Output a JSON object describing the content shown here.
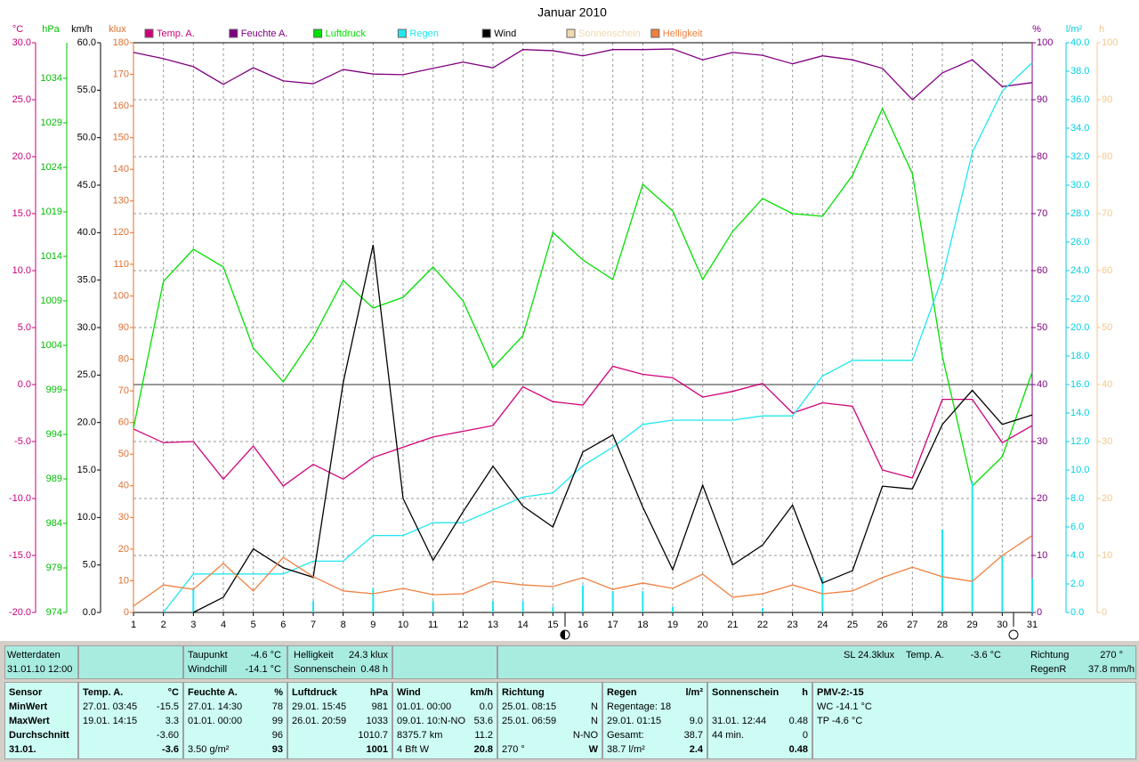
{
  "chart_data": {
    "type": "line",
    "title": "Januar 2010",
    "x": [
      1,
      2,
      3,
      4,
      5,
      6,
      7,
      8,
      9,
      10,
      11,
      12,
      13,
      14,
      15,
      16,
      17,
      18,
      19,
      20,
      21,
      22,
      23,
      24,
      25,
      26,
      27,
      28,
      29,
      30,
      31
    ],
    "xlim": [
      1,
      31
    ],
    "xticks": [
      1,
      2,
      3,
      4,
      5,
      6,
      7,
      8,
      9,
      10,
      11,
      12,
      13,
      14,
      15,
      16,
      17,
      18,
      19,
      20,
      21,
      22,
      23,
      24,
      25,
      26,
      27,
      28,
      29,
      30,
      31
    ],
    "grid": true,
    "axes": [
      {
        "label": "°C",
        "color": "#c8007a",
        "lim": [
          -20,
          30
        ],
        "ticks": [
          {
            "value": -20,
            "label": "-20.0"
          },
          {
            "value": -15,
            "label": "-15.0"
          },
          {
            "value": -10,
            "label": "-10.0"
          },
          {
            "value": -5,
            "label": "-5.0"
          },
          {
            "value": 0,
            "label": "0.0"
          },
          {
            "value": 5,
            "label": "5.0"
          },
          {
            "value": 10,
            "label": "10.0"
          },
          {
            "value": 15,
            "label": "15.0"
          },
          {
            "value": 20,
            "label": "20.0"
          },
          {
            "value": 25,
            "label": "25.0"
          },
          {
            "value": 30,
            "label": "30.0"
          }
        ]
      },
      {
        "label": "hPa",
        "color": "#00c000",
        "lim": [
          974,
          1038
        ],
        "ticks": [
          974,
          979,
          984,
          989,
          994,
          999,
          1004,
          1009,
          1014,
          1019,
          1024,
          1029,
          1034
        ]
      },
      {
        "label": "km/h",
        "color": "#000000",
        "lim": [
          0,
          60
        ],
        "ticks": [
          {
            "value": 0,
            "label": "0.0"
          },
          {
            "value": 5,
            "label": "5.0"
          },
          {
            "value": 10,
            "label": "10.0"
          },
          {
            "value": 15,
            "label": "15.0"
          },
          {
            "value": 20,
            "label": "20.0"
          },
          {
            "value": 25,
            "label": "25.0"
          },
          {
            "value": 30,
            "label": "30.0"
          },
          {
            "value": 35,
            "label": "35.0"
          },
          {
            "value": 40,
            "label": "40.0"
          },
          {
            "value": 45,
            "label": "45.0"
          },
          {
            "value": 50,
            "label": "50.0"
          },
          {
            "value": 55,
            "label": "55.0"
          },
          {
            "value": 60,
            "label": "60.0"
          }
        ]
      },
      {
        "label": "klux",
        "color": "#e07030",
        "lim": [
          0,
          180
        ],
        "ticks": [
          0,
          10,
          20,
          30,
          40,
          50,
          60,
          70,
          80,
          90,
          100,
          110,
          120,
          130,
          140,
          150,
          160,
          170,
          180
        ]
      },
      {
        "label": "%",
        "color": "#800080",
        "lim": [
          0,
          100
        ],
        "ticks": [
          0,
          10,
          20,
          30,
          40,
          50,
          60,
          70,
          80,
          90,
          100
        ]
      },
      {
        "label": "l/m²",
        "color": "#00d0e0",
        "lim": [
          0,
          40
        ],
        "ticks": [
          {
            "value": 0,
            "label": "0.0"
          },
          {
            "value": 2,
            "label": "2.0"
          },
          {
            "value": 4,
            "label": "4.0"
          },
          {
            "value": 6,
            "label": "6.0"
          },
          {
            "value": 8,
            "label": "8.0"
          },
          {
            "value": 10,
            "label": "10.0"
          },
          {
            "value": 12,
            "label": "12.0"
          },
          {
            "value": 14,
            "label": "14.0"
          },
          {
            "value": 16,
            "label": "16.0"
          },
          {
            "value": 18,
            "label": "18.0"
          },
          {
            "value": 20,
            "label": "20.0"
          },
          {
            "value": 22,
            "label": "22.0"
          },
          {
            "value": 24,
            "label": "24.0"
          },
          {
            "value": 26,
            "label": "26.0"
          },
          {
            "value": 28,
            "label": "28.0"
          },
          {
            "value": 30,
            "label": "30.0"
          },
          {
            "value": 32,
            "label": "32.0"
          },
          {
            "value": 34,
            "label": "34.0"
          },
          {
            "value": 36,
            "label": "36.0"
          },
          {
            "value": 38,
            "label": "38.0"
          },
          {
            "value": 40,
            "label": "40.0"
          }
        ]
      },
      {
        "label": "h",
        "color": "#f0c890",
        "lim": [
          0,
          100
        ],
        "ticks": [
          0,
          10,
          20,
          30,
          40,
          50,
          60,
          70,
          80,
          90,
          100
        ]
      }
    ],
    "series": [
      {
        "name": "Temp. A.",
        "color": "#d0007a",
        "axis": 0,
        "values": [
          -3.9,
          -5.1,
          -5.0,
          -8.3,
          -5.4,
          -8.9,
          -7.0,
          -8.3,
          -6.4,
          -5.5,
          -4.6,
          -4.1,
          -3.6,
          -0.2,
          -1.5,
          -1.8,
          1.6,
          0.9,
          0.6,
          -1.1,
          -0.6,
          0.1,
          -2.5,
          -1.6,
          -1.9,
          -7.5,
          -8.2,
          -1.3,
          -1.3,
          -5.1,
          -3.6
        ]
      },
      {
        "name": "Feuchte A.",
        "color": "#800080",
        "axis": 4,
        "values": [
          98.3,
          97.2,
          95.8,
          92.7,
          95.6,
          93.3,
          92.8,
          95.3,
          94.5,
          94.4,
          95.5,
          96.6,
          95.6,
          98.8,
          98.6,
          97.7,
          98.8,
          98.8,
          98.9,
          97.0,
          98.3,
          97.8,
          96.3,
          97.7,
          97.0,
          95.5,
          90.0,
          94.7,
          97.0,
          92.3,
          93
        ]
      },
      {
        "name": "Luftdruck",
        "color": "#00e000",
        "axis": 1,
        "values": [
          994.7,
          1011.2,
          1014.8,
          1012.8,
          1003.7,
          999.9,
          1004.9,
          1011.3,
          1008.2,
          1009.4,
          1012.8,
          1009.0,
          1001.5,
          1005.1,
          1016.7,
          1013.6,
          1011.4,
          1022.1,
          1019.1,
          1011.4,
          1016.8,
          1020.5,
          1018.8,
          1018.5,
          1023.1,
          1030.6,
          1023.3,
          1002.8,
          988.2,
          991.5,
          1001
        ]
      },
      {
        "name": "Regen",
        "color": "#20e8f0",
        "axis": 5,
        "values": [
          null,
          0,
          2.7,
          2.7,
          2.7,
          2.7,
          3.6,
          3.6,
          5.4,
          5.4,
          6.3,
          6.3,
          7.2,
          8.1,
          8.4,
          10.3,
          11.6,
          13.2,
          13.5,
          13.5,
          13.5,
          13.8,
          13.8,
          16.6,
          17.7,
          17.7,
          17.7,
          23.5,
          32.3,
          36.6,
          38.6
        ],
        "daily": [
          0,
          0,
          1.7,
          0,
          0,
          0,
          0.8,
          0,
          1.7,
          0,
          0.8,
          0,
          0.8,
          0.8,
          0.4,
          1.9,
          1.5,
          1.5,
          0.4,
          0,
          0,
          0.3,
          0,
          2.5,
          0,
          0,
          0,
          5.8,
          9.2,
          4.0,
          2.4
        ]
      },
      {
        "name": "Wind",
        "color": "#000000",
        "axis": 2,
        "values": [
          null,
          null,
          0,
          1.6,
          6.7,
          4.7,
          3.7,
          24.2,
          38.7,
          12.0,
          5.5,
          10.6,
          15.4,
          11.2,
          9.0,
          16.9,
          18.7,
          11.1,
          4.5,
          13.4,
          5.0,
          7.1,
          11.3,
          3.1,
          4.4,
          13.3,
          13.0,
          19.8,
          23.4,
          19.8,
          20.8
        ]
      },
      {
        "name": "Sonnenschein",
        "color": "#f0d8b0",
        "axis": 6
      },
      {
        "name": "Helligkeit",
        "color": "#f08040",
        "axis": 3,
        "values": [
          2.0,
          8.7,
          7.3,
          15.5,
          6.8,
          17.4,
          11.3,
          6.8,
          5.9,
          7.6,
          5.6,
          5.9,
          9.8,
          8.7,
          8.2,
          11.0,
          7.3,
          9.3,
          7.6,
          12.1,
          4.8,
          5.9,
          8.7,
          5.9,
          6.8,
          11.0,
          14.3,
          11.3,
          9.8,
          18.0,
          24.3
        ]
      }
    ]
  },
  "info": [
    "Wetterdaten",
    "31.01.10 12:00",
    "Taupunkt",
    "-4.6 °C",
    "Windchill",
    "-14.1 °C",
    "Helligkeit",
    "24.3 klux",
    "Sonnenschein",
    "0.48 h",
    "SL 24.3klux",
    "Temp. A.",
    "-3.6 °C",
    "Richtung",
    "270 °",
    "RegenR",
    "37.8 mm/h"
  ],
  "table": [
    {
      "rows": [
        {
          "l": "Sensor"
        },
        {
          "l": "MinWert"
        },
        {
          "l": "MaxWert"
        },
        {
          "l": "Durchschnitt"
        },
        {
          "l": "31.01."
        }
      ]
    },
    {
      "rows": [
        {
          "l": "Temp. A.",
          "r": "°C"
        },
        {
          "l": "27.01. 03:45",
          "r": "-15.5"
        },
        {
          "l": "19.01. 14:15",
          "r": "3.3"
        },
        {
          "r": "-3.60"
        },
        {
          "r": "-3.6"
        }
      ]
    },
    {
      "rows": [
        {
          "l": "Feuchte A.",
          "r": "%"
        },
        {
          "l": "27.01. 14:30",
          "r": "78"
        },
        {
          "l": "01.01. 00:00",
          "r": "99"
        },
        {
          "r": "96"
        },
        {
          "l": "3.50 g/m²",
          "r": "93"
        }
      ]
    },
    {
      "rows": [
        {
          "l": "Luftdruck",
          "r": "hPa"
        },
        {
          "l": "29.01. 15:45",
          "r": "981"
        },
        {
          "l": "26.01. 20:59",
          "r": "1033"
        },
        {
          "r": "1010.7"
        },
        {
          "r": "1001"
        }
      ]
    },
    {
      "rows": [
        {
          "l": "Wind",
          "r": "km/h"
        },
        {
          "l": "01.01. 00:00",
          "r": "0.0"
        },
        {
          "l": "09.01. 10:N-NO",
          "r": "53.6"
        },
        {
          "l": "8375.7 km",
          "r": "11.2"
        },
        {
          "l": "4 Bft W",
          "r": "20.8"
        }
      ]
    },
    {
      "rows": [
        {
          "l": "Richtung"
        },
        {
          "l": "25.01. 08:15",
          "r": "N"
        },
        {
          "l": "25.01. 06:59",
          "r": "N"
        },
        {
          "r": "N-NO"
        },
        {
          "l": "270 °",
          "r": "W"
        }
      ]
    },
    {
      "rows": [
        {
          "l": "Regen",
          "r": "l/m²"
        },
        {
          "l": "Regentage: 18"
        },
        {
          "l": "29.01. 01:15",
          "r": "9.0"
        },
        {
          "l": "Gesamt:",
          "r": "38.7"
        },
        {
          "l": "38.7 l/m²",
          "r": "2.4"
        }
      ]
    },
    {
      "rows": [
        {
          "l": "Sonnenschein",
          "r": "h"
        },
        {},
        {
          "l": "31.01. 12:44",
          "r": "0.48"
        },
        {
          "l": "44 min.",
          "r": "0"
        },
        {
          "r": "0.48"
        }
      ]
    },
    {
      "rows": [
        {
          "l": "PMV-2:-15"
        },
        {
          "l": "WC -14.1 °C"
        },
        {
          "l": "TP -4.6 °C"
        }
      ]
    }
  ]
}
